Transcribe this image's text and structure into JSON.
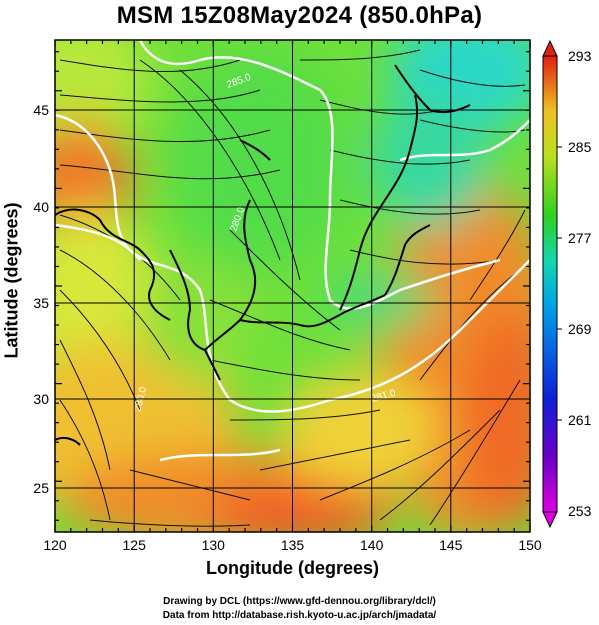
{
  "title": "MSM 15Z08May2024 (850.0hPa)",
  "axes": {
    "xlabel": "Longitude (degrees)",
    "ylabel": "Latitude  (degrees)",
    "x_ticks": [
      "120",
      "125",
      "130",
      "135",
      "140",
      "145",
      "150"
    ],
    "y_ticks": [
      "25",
      "30",
      "35",
      "40",
      "45"
    ],
    "x_range": [
      120,
      150
    ],
    "y_range": [
      22.4,
      47.6
    ]
  },
  "colorbar": {
    "ticks": [
      "293",
      "285",
      "277",
      "269",
      "261",
      "253"
    ],
    "range": [
      253,
      293
    ]
  },
  "contour_labels": [
    "285.0",
    "280.0",
    "281.0",
    "280.0"
  ],
  "credits": {
    "line1": "Drawing by DCL (https://www.gfd-dennou.org/library/dcl/)",
    "line2": "Data from http://database.rish.kyoto-u.ac.jp/arch/jmadata/"
  },
  "colors": {
    "warm": "#e8542a",
    "mid_yellow": "#e6e63a",
    "green": "#36d84a",
    "cyan": "#28d8c0"
  }
}
